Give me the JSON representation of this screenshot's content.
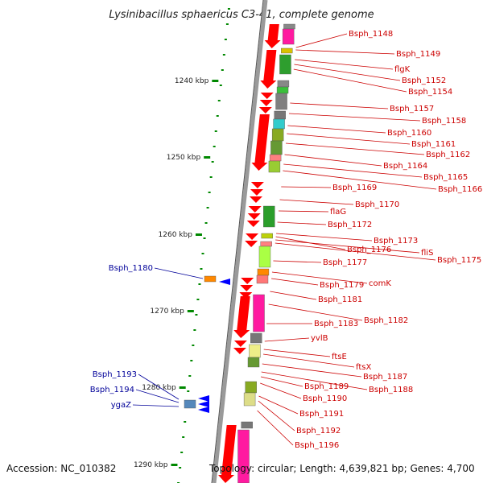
{
  "title": "Lysinibacillus sphaericus C3-41, complete genome",
  "footer": {
    "accession": "Accession: NC_010382",
    "topology": "Topology: circular; Length: 4,639,821 bp; Genes: 4,700"
  },
  "scale_labels": [
    "1240 kbp",
    "1250 kbp",
    "1260 kbp",
    "1270 kbp",
    "1280 kbp",
    "1290 kbp"
  ],
  "gene_labels_right": [
    "Bsph_1148",
    "Bsph_1149",
    "flgK",
    "Bsph_1152",
    "Bsph_1154",
    "Bsph_1157",
    "Bsph_1158",
    "Bsph_1160",
    "Bsph_1161",
    "Bsph_1162",
    "Bsph_1164",
    "Bsph_1165",
    "Bsph_1166",
    "Bsph_1169",
    "Bsph_1170",
    "flaG",
    "Bsph_1172",
    "Bsph_1173",
    "Bsph_1176",
    "fliS",
    "Bsph_1175",
    "Bsph_1177",
    "comK",
    "Bsph_1179",
    "Bsph_1181",
    "Bsph_1182",
    "Bsph_1183",
    "yvlB",
    "ftsE",
    "ftsX",
    "Bsph_1187",
    "Bsph_1188",
    "Bsph_1189",
    "Bsph_1190",
    "Bsph_1191",
    "Bsph_1192",
    "Bsph_1196"
  ],
  "gene_labels_left": [
    "Bsph_1180",
    "Bsph_1193",
    "Bsph_1194",
    "ygaZ"
  ],
  "colors": {
    "backbone": "#888888",
    "forward_arrow": "#ff0000",
    "reverse_arrow": "#0000ff",
    "right_label": "#cc0000",
    "left_label": "#000099",
    "tick": "#008800"
  }
}
